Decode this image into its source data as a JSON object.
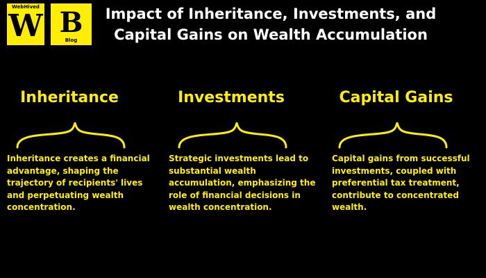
{
  "logo": {
    "w_small_text": "WebHived",
    "w_letter": "W",
    "b_letter": "B",
    "b_small_text": "Blog"
  },
  "title": "Impact of Inheritance, Investments, and Capital Gains on Wealth Accumulation",
  "columns": [
    {
      "heading": "Inheritance",
      "text": "Inheritance creates a financial advantage, shaping the trajectory of recipients' lives and perpetuating wealth concentration."
    },
    {
      "heading": "Investments",
      "text": "Strategic investments lead to substantial wealth accumulation, emphasizing the role of financial decisions in wealth concentration."
    },
    {
      "heading": "Capital Gains",
      "text": "Capital gains from successful investments, coupled with preferential tax treatment, contribute to concentrated wealth."
    }
  ],
  "colors": {
    "background": "#000000",
    "accent": "#FFEE00",
    "title": "#FFFFFF"
  }
}
